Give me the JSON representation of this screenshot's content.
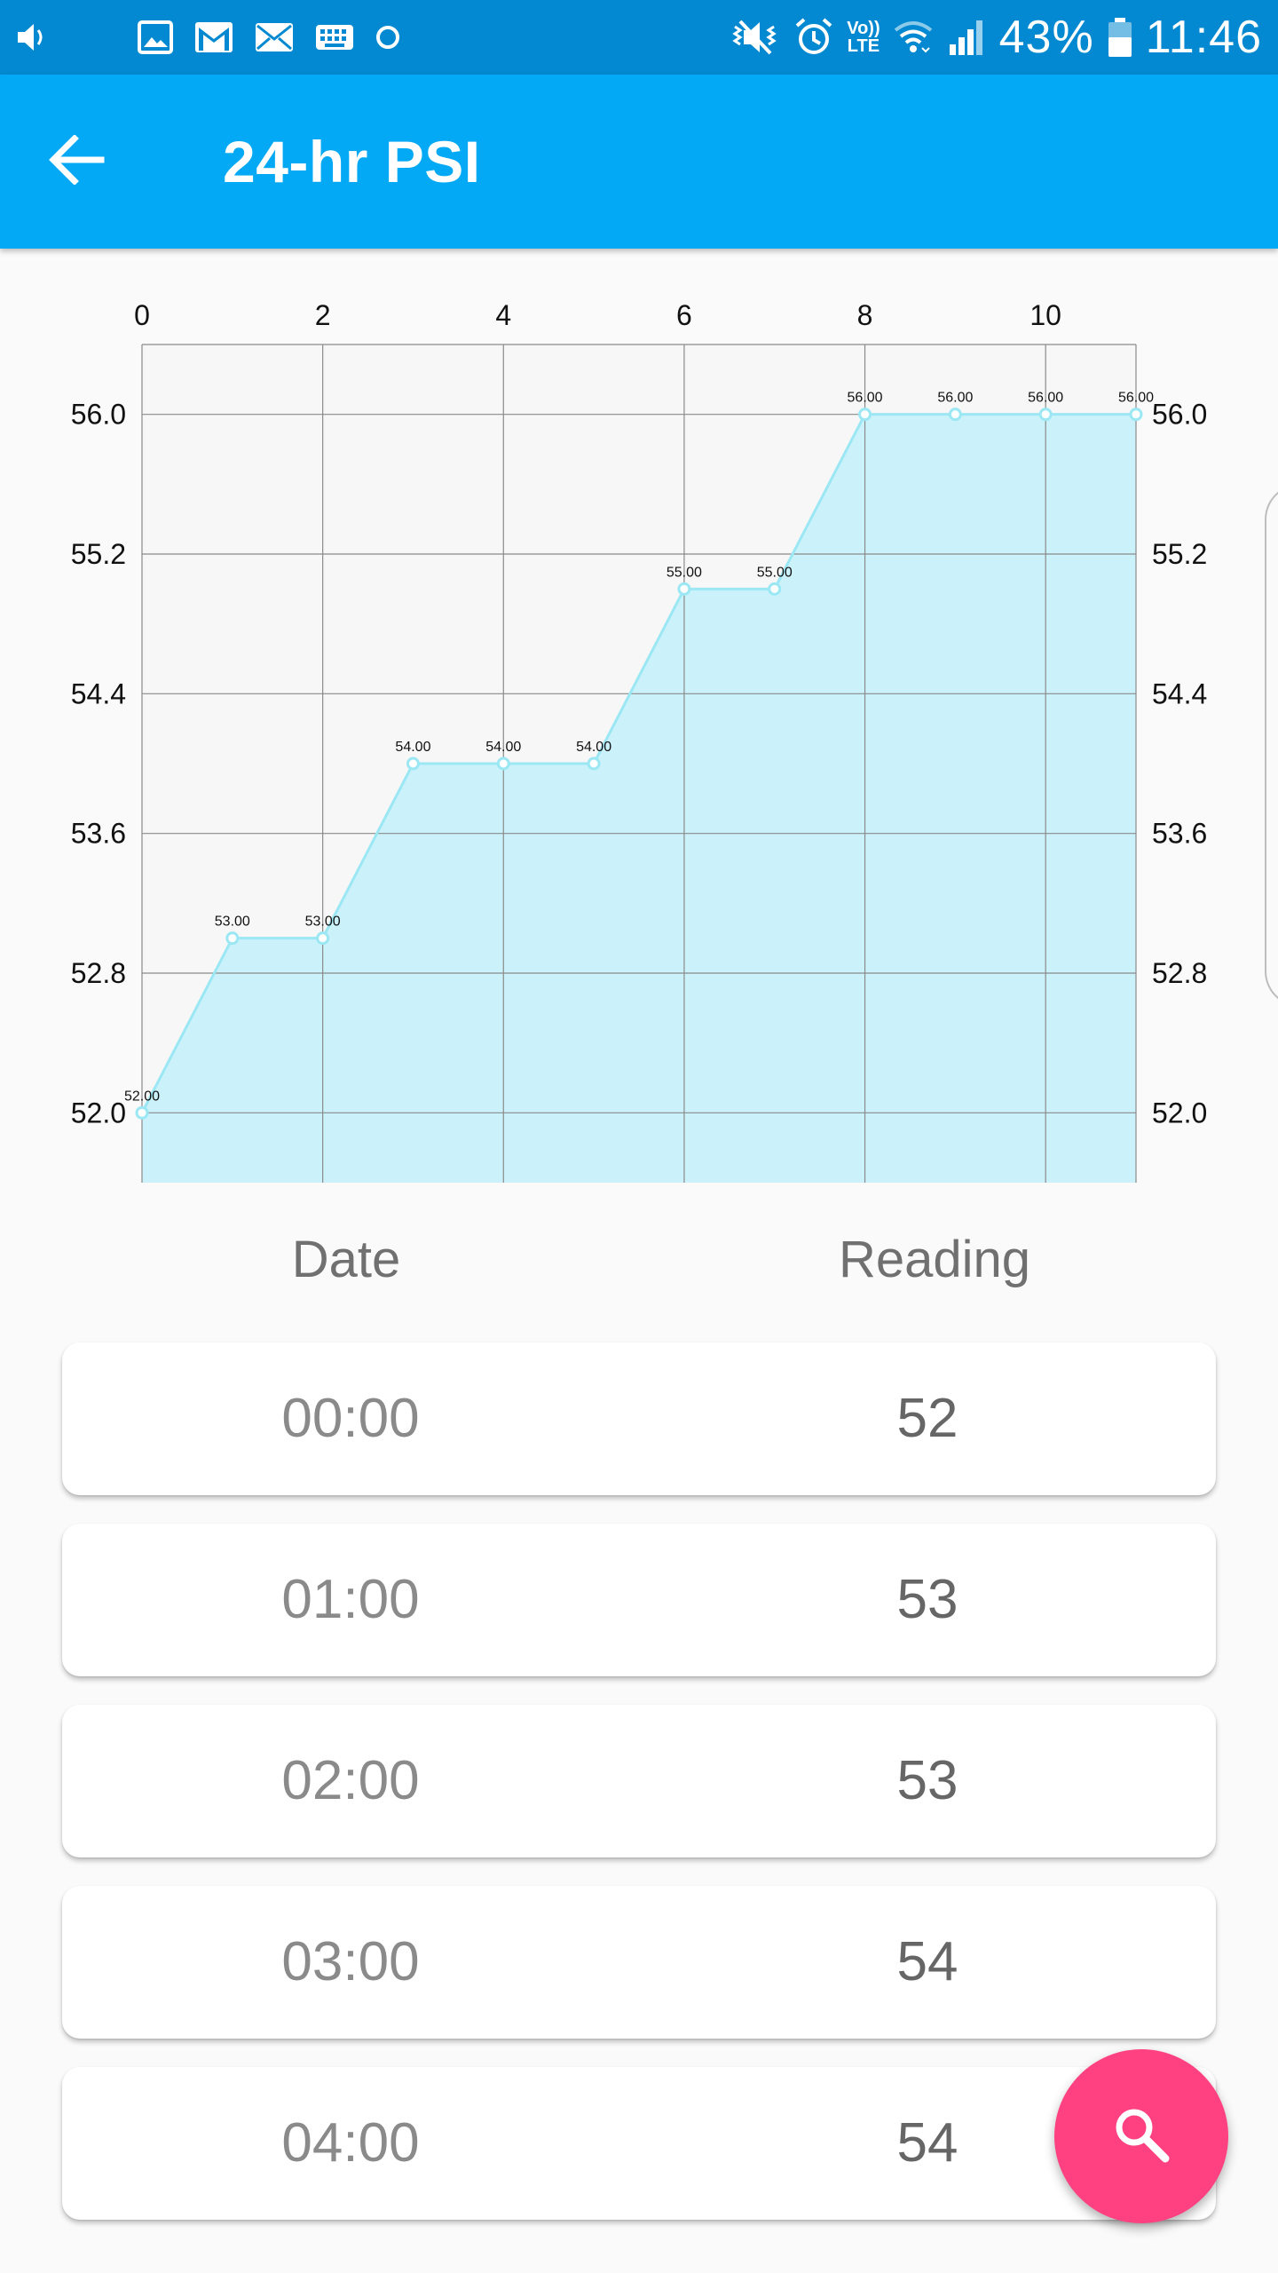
{
  "status_bar": {
    "battery_percent": "43%",
    "time": "11:46",
    "volte_top": "Vo))",
    "volte_bottom": "LTE",
    "left_icons": [
      "volume-icon",
      "image-icon",
      "gmail-icon",
      "mail-icon",
      "keyboard-icon",
      "circle-icon"
    ],
    "right_icons": [
      "mute-icon",
      "alarm-icon",
      "volte-icon",
      "wifi-icon",
      "signal-icon",
      "battery-icon"
    ]
  },
  "appbar": {
    "title": "24-hr PSI",
    "back_icon": "arrow-left-icon"
  },
  "chart_data": {
    "type": "area",
    "x": [
      0,
      1,
      2,
      3,
      4,
      5,
      6,
      7,
      8,
      9,
      10,
      11
    ],
    "values": [
      52,
      53,
      53,
      54,
      54,
      54,
      55,
      55,
      56,
      56,
      56,
      56
    ],
    "data_labels": [
      "52.00",
      "53.00",
      "53.00",
      "54.00",
      "54.00",
      "54.00",
      "55.00",
      "55.00",
      "56.00",
      "56.00",
      "56.00",
      "56.00"
    ],
    "x_ticks": [
      "0",
      "2",
      "4",
      "6",
      "8",
      "10"
    ],
    "y_ticks": [
      "52.0",
      "52.8",
      "53.6",
      "54.4",
      "55.2",
      "56.0"
    ],
    "x_range": [
      0,
      11
    ],
    "y_range": [
      51.6,
      56.4
    ],
    "grid": true,
    "fill_color": "#cbf2fa",
    "line_color": "#9be7f4"
  },
  "table": {
    "headers": {
      "date": "Date",
      "reading": "Reading"
    },
    "rows": [
      {
        "date": "00:00",
        "reading": "52"
      },
      {
        "date": "01:00",
        "reading": "53"
      },
      {
        "date": "02:00",
        "reading": "53"
      },
      {
        "date": "03:00",
        "reading": "54"
      },
      {
        "date": "04:00",
        "reading": "54"
      }
    ]
  },
  "fab": {
    "icon": "search-icon",
    "color": "#ff4081"
  }
}
